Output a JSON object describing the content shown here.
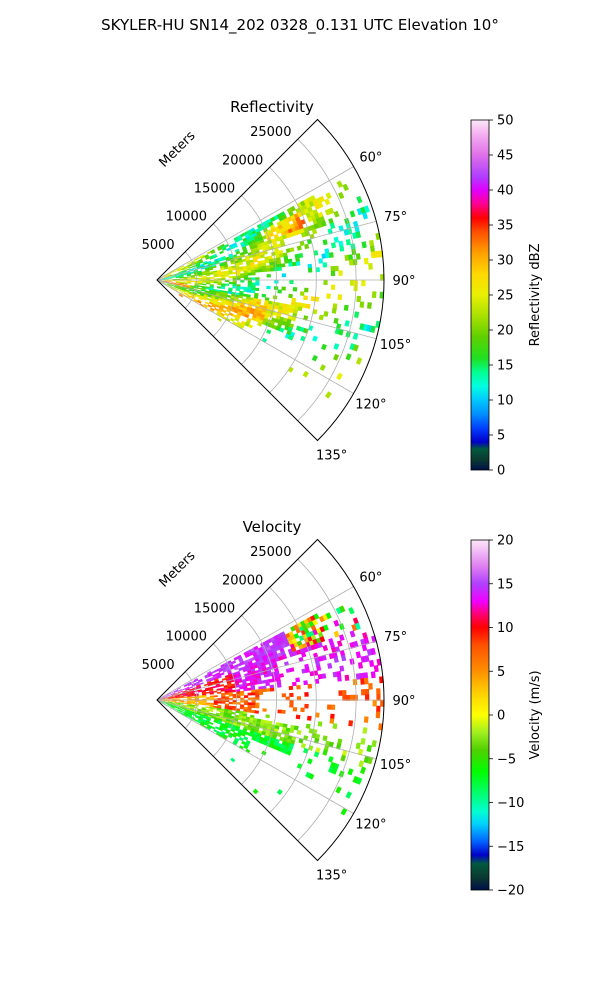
{
  "figure": {
    "title": "SKYLER-HU  SN14_202  0328_0.131 UTC Elevation 10°"
  },
  "chart_data": [
    {
      "type": "heatmap",
      "projection": "polar-sector",
      "title": "Reflectivity",
      "radial_label": "Meters",
      "radial_ticks": [
        "5000",
        "10000",
        "15000",
        "20000",
        "25000"
      ],
      "radial_tick_values": [
        5000,
        10000,
        15000,
        20000,
        25000
      ],
      "radial_max": 28500,
      "azimuth_range": [
        45,
        135
      ],
      "azimuth_ticks": [
        "60°",
        "75°",
        "90°",
        "105°",
        "120°",
        "135°"
      ],
      "azimuth_tick_values": [
        60,
        75,
        90,
        105,
        120,
        135
      ],
      "colorbar": {
        "label": "Reflectivity dBZ",
        "range": [
          0,
          50
        ],
        "ticks": [
          "0",
          "5",
          "10",
          "15",
          "20",
          "25",
          "30",
          "35",
          "40",
          "45",
          "50"
        ],
        "tick_values": [
          0,
          5,
          10,
          15,
          20,
          25,
          30,
          35,
          40,
          45,
          50
        ],
        "stops": [
          {
            "v": 0,
            "c": "#00104a"
          },
          {
            "v": 1.5,
            "c": "#0b3a30"
          },
          {
            "v": 3,
            "c": "#005a40"
          },
          {
            "v": 4,
            "c": "#0000c8"
          },
          {
            "v": 6,
            "c": "#0040ff"
          },
          {
            "v": 8,
            "c": "#0090ff"
          },
          {
            "v": 10,
            "c": "#00c8ff"
          },
          {
            "v": 12,
            "c": "#00ffe0"
          },
          {
            "v": 14,
            "c": "#00ff90"
          },
          {
            "v": 16,
            "c": "#20e020"
          },
          {
            "v": 19,
            "c": "#60d000"
          },
          {
            "v": 22,
            "c": "#a8e000"
          },
          {
            "v": 25,
            "c": "#e8f000"
          },
          {
            "v": 28,
            "c": "#ffd800"
          },
          {
            "v": 31,
            "c": "#ffa000"
          },
          {
            "v": 34,
            "c": "#ff5000"
          },
          {
            "v": 36,
            "c": "#ff0000"
          },
          {
            "v": 38,
            "c": "#ff0090"
          },
          {
            "v": 40,
            "c": "#e000ff"
          },
          {
            "v": 42,
            "c": "#b040ff"
          },
          {
            "v": 45,
            "c": "#e070e8"
          },
          {
            "v": 48,
            "c": "#f5b0f0"
          },
          {
            "v": 50,
            "c": "#fce8fa"
          }
        ]
      }
    },
    {
      "type": "heatmap",
      "projection": "polar-sector",
      "title": "Velocity",
      "radial_label": "Meters",
      "radial_ticks": [
        "5000",
        "10000",
        "15000",
        "20000",
        "25000"
      ],
      "radial_tick_values": [
        5000,
        10000,
        15000,
        20000,
        25000
      ],
      "radial_max": 28500,
      "azimuth_range": [
        45,
        135
      ],
      "azimuth_ticks": [
        "60°",
        "75°",
        "90°",
        "105°",
        "120°",
        "135°"
      ],
      "azimuth_tick_values": [
        60,
        75,
        90,
        105,
        120,
        135
      ],
      "colorbar": {
        "label": "Velocity (m/s)",
        "range": [
          -20,
          20
        ],
        "ticks": [
          "−20",
          "−15",
          "−10",
          "−5",
          "0",
          "5",
          "10",
          "15",
          "20"
        ],
        "tick_values": [
          -20,
          -15,
          -10,
          -5,
          0,
          5,
          10,
          15,
          20
        ],
        "stops": [
          {
            "v": -20,
            "c": "#00104a"
          },
          {
            "v": -18.5,
            "c": "#0b3a30"
          },
          {
            "v": -17,
            "c": "#005a40"
          },
          {
            "v": -16,
            "c": "#0000c8"
          },
          {
            "v": -14.5,
            "c": "#0060ff"
          },
          {
            "v": -12.5,
            "c": "#00d0ff"
          },
          {
            "v": -11,
            "c": "#00ffd0"
          },
          {
            "v": -9,
            "c": "#00ff70"
          },
          {
            "v": -6.5,
            "c": "#00ff00"
          },
          {
            "v": -4,
            "c": "#50d000"
          },
          {
            "v": -2,
            "c": "#a0f020"
          },
          {
            "v": 0,
            "c": "#ffff00"
          },
          {
            "v": 2.5,
            "c": "#ffd000"
          },
          {
            "v": 5,
            "c": "#ff9000"
          },
          {
            "v": 8,
            "c": "#ff5000"
          },
          {
            "v": 10,
            "c": "#ff0000"
          },
          {
            "v": 11.5,
            "c": "#ff0070"
          },
          {
            "v": 13,
            "c": "#f000ff"
          },
          {
            "v": 15,
            "c": "#b040ff"
          },
          {
            "v": 17,
            "c": "#e080f0"
          },
          {
            "v": 20,
            "c": "#fce8fa"
          }
        ]
      }
    }
  ]
}
